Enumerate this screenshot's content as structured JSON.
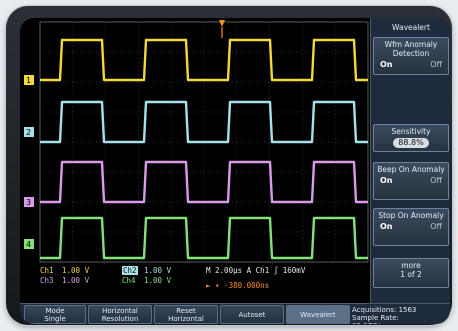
{
  "colors": {
    "ch1": "#f2d83a",
    "ch2": "#a6e0e8",
    "ch3": "#d99be8",
    "ch4": "#84e07a",
    "trigger": "#ff8c1a",
    "grid": "#4a4f55"
  },
  "channel_markers": [
    "1",
    "2",
    "3",
    "4"
  ],
  "status": {
    "ch1_label": "Ch1",
    "ch1_scale": "1.00 V",
    "ch2_label": "Ch2",
    "ch2_scale": "1.00 V",
    "ch3_label": "Ch3",
    "ch3_scale": "1.00 V",
    "ch4_label": "Ch4",
    "ch4_scale": "1.00 V",
    "timebase": "M 2.00µs A Ch1 ∫ 160mV",
    "trigger_pos": "► ▾ -380.000ns"
  },
  "side_menu": {
    "title": "Wavealert",
    "anomaly_detection": {
      "label": "Wfm Anomaly Detection",
      "on": "On",
      "off": "Off"
    },
    "sensitivity": {
      "label": "Sensitivity",
      "value": "88.8%"
    },
    "beep": {
      "label": "Beep On Anomaly",
      "on": "On",
      "off": "Off"
    },
    "stop": {
      "label": "Stop On Anomaly",
      "on": "On",
      "off": "Off"
    },
    "more": {
      "label": "more",
      "page": "1 of 2"
    }
  },
  "bottom_menu": [
    {
      "name": "mode",
      "label": "Mode\nSingle"
    },
    {
      "name": "horizontal-resolution",
      "label": "Horizontal\nResolution\nFast Trig"
    },
    {
      "name": "reset-horizontal-delay",
      "label": "Reset\nHorizontal\nDelay"
    },
    {
      "name": "autoset",
      "label": "Autoset"
    },
    {
      "name": "wavealert",
      "label": "Wavealert"
    },
    {
      "name": "acquisition-status",
      "label": "Acquisitions: 1563\nSample Rate:\n25.0GS/s"
    }
  ]
}
